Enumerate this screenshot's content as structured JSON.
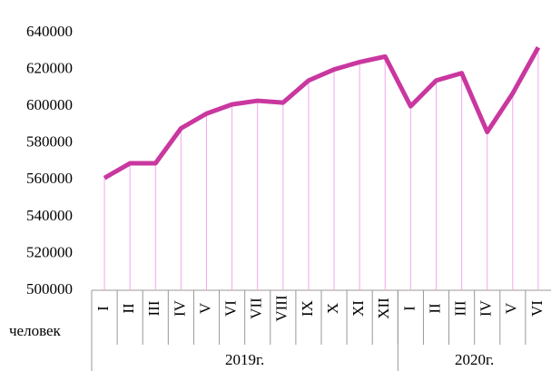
{
  "chart_data": {
    "type": "line",
    "y_label": "человек",
    "color": "#c9379f",
    "drop_line_color": "#f2a6ec",
    "groups": [
      {
        "label": "2019г.",
        "categories": [
          "I",
          "II",
          "III",
          "IV",
          "V",
          "VI",
          "VII",
          "VIII",
          "IX",
          "X",
          "XI",
          "XII"
        ],
        "values": [
          561000,
          569000,
          569000,
          588000,
          596000,
          601000,
          603000,
          602000,
          614000,
          620000,
          624000,
          627000
        ]
      },
      {
        "label": "2020г.",
        "categories": [
          "I",
          "II",
          "III",
          "IV",
          "V",
          "VI"
        ],
        "values": [
          600000,
          614000,
          618000,
          586000,
          607000,
          632000
        ]
      }
    ],
    "ylim": [
      500000,
      640000
    ],
    "yticks": [
      500000,
      520000,
      540000,
      560000,
      580000,
      600000,
      620000,
      640000
    ],
    "grid": false
  }
}
